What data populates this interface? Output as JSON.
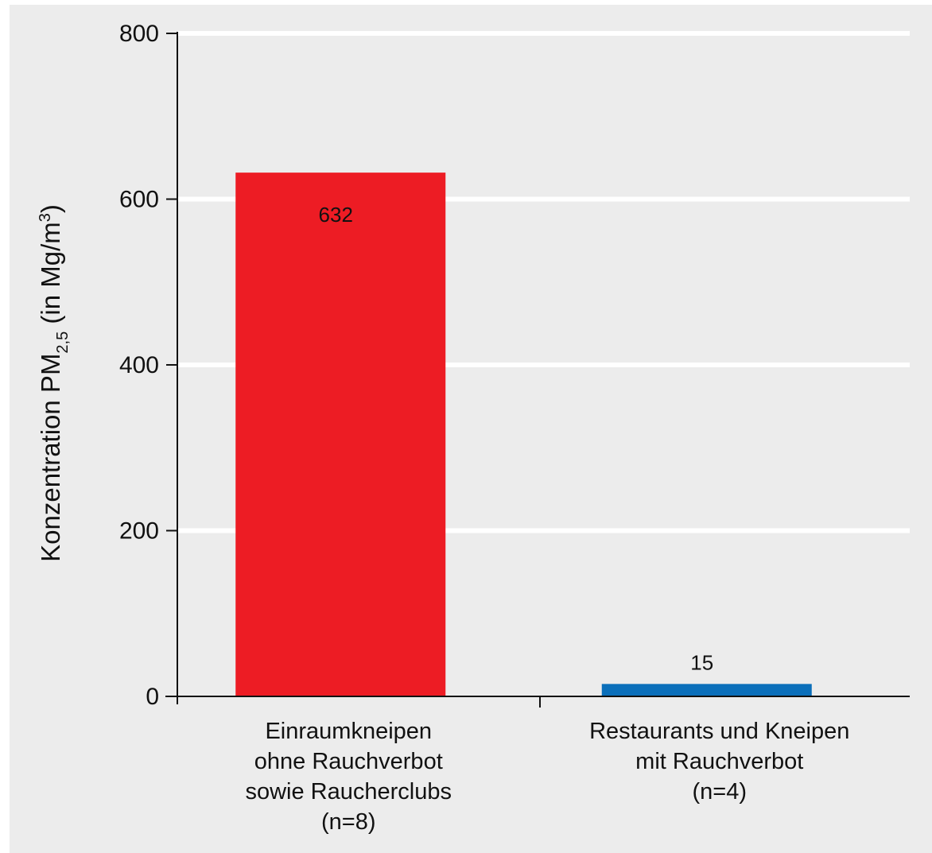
{
  "chart_data": {
    "type": "bar",
    "categories": [
      {
        "lines": [
          "Einraumkneipen",
          "ohne Rauchverbot",
          "sowie Raucherclubs",
          "(n=8)"
        ]
      },
      {
        "lines": [
          "Restaurants und Kneipen",
          "mit Rauchverbot",
          "(n=4)"
        ]
      }
    ],
    "values": [
      632,
      15
    ],
    "data_labels": [
      "632",
      "15"
    ],
    "colors": [
      "#ed1c24",
      "#0b6fba"
    ],
    "ylabel": {
      "main": "Konzentration PM",
      "sub": "2,5",
      "unit_pre": " (in Mg/m",
      "sup": "3",
      "unit_post": ")"
    },
    "yticks": [
      0,
      200,
      400,
      600,
      800
    ],
    "ylim": [
      0,
      800
    ],
    "grid": true,
    "grid_color": "#ffffff",
    "background": "#ececec"
  }
}
